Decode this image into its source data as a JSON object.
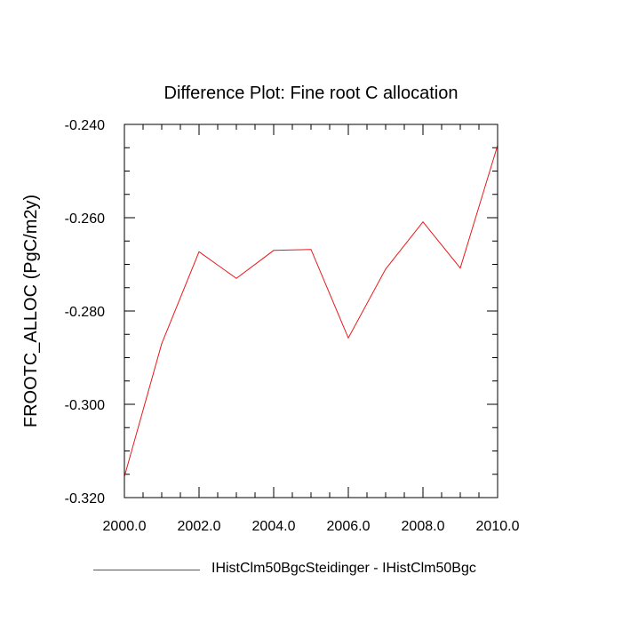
{
  "chart_data": {
    "type": "line",
    "title": "Difference Plot: Fine root C allocation",
    "ylabel": "FROOTC_ALLOC  (PgC/m2y)",
    "xlabel": "",
    "xlim": [
      2000.0,
      2010.0
    ],
    "ylim": [
      -0.32,
      -0.24
    ],
    "x_ticks": [
      2000.0,
      2002.0,
      2004.0,
      2006.0,
      2008.0,
      2010.0
    ],
    "x_tick_labels": [
      "2000.0",
      "2002.0",
      "2004.0",
      "2006.0",
      "2008.0",
      "2010.0"
    ],
    "y_ticks": [
      -0.32,
      -0.3,
      -0.28,
      -0.26,
      -0.24
    ],
    "y_tick_labels": [
      "-0.320",
      "-0.300",
      "-0.280",
      "-0.260",
      "-0.240"
    ],
    "grid": false,
    "legend_position": "bottom",
    "series": [
      {
        "name": "IHistClm50BgcSteidinger - IHistClm50Bgc",
        "color": "#e8191b",
        "x": [
          2000,
          2001,
          2002,
          2003,
          2004,
          2005,
          2006,
          2007,
          2008,
          2009,
          2010
        ],
        "values": [
          -0.3155,
          -0.287,
          -0.2673,
          -0.273,
          -0.267,
          -0.2668,
          -0.2858,
          -0.271,
          -0.2609,
          -0.2708,
          -0.2445
        ]
      }
    ]
  }
}
